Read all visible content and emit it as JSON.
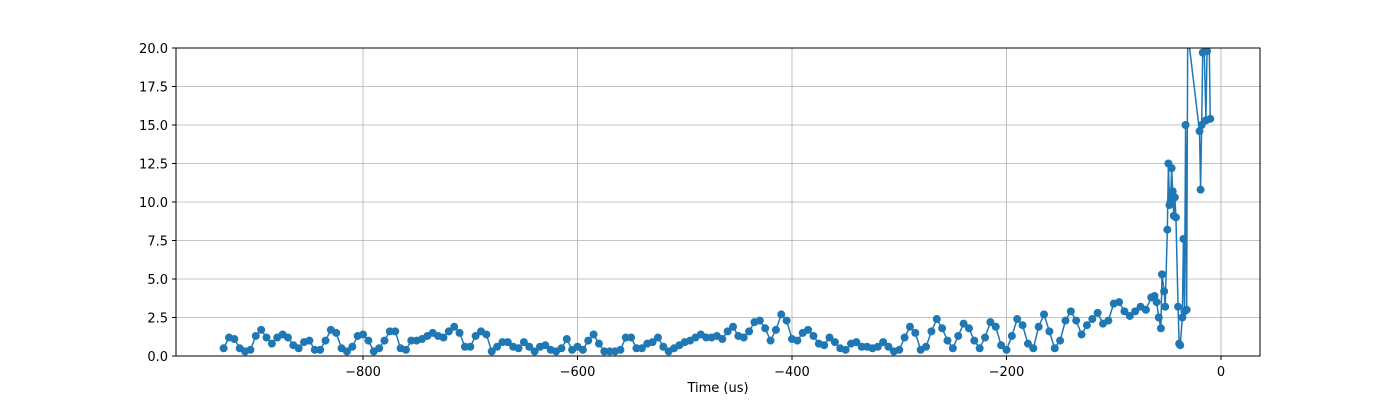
{
  "chart_data": {
    "type": "line",
    "xlabel": "Time (us)",
    "xlim": [
      -974.4,
      36.4
    ],
    "xticks": [
      {
        "value": -800,
        "label": "−800"
      },
      {
        "value": -600,
        "label": "−600"
      },
      {
        "value": -400,
        "label": "−400"
      },
      {
        "value": -200,
        "label": "−200"
      },
      0
    ],
    "ylim": [
      0,
      20
    ],
    "yticks": [
      {
        "value": 0,
        "label": "0.0"
      },
      2.5,
      {
        "value": 5,
        "label": "5.0"
      },
      7.5,
      {
        "value": 10,
        "label": "10.0"
      },
      12.5,
      {
        "value": 15,
        "label": "15.0"
      },
      17.5,
      {
        "value": 20,
        "label": "20.0"
      }
    ],
    "grid": true,
    "series": [
      {
        "color": "#1f77b4",
        "x": [
          -930,
          -925,
          -920,
          -915,
          -910,
          -905,
          -900,
          -895,
          -890,
          -885,
          -880,
          -875,
          -870,
          -865,
          -860,
          -855,
          -850,
          -845,
          -840,
          -835,
          -830,
          -825,
          -820,
          -815,
          -810,
          -805,
          -800,
          -795,
          -790,
          -785,
          -780,
          -775,
          -770,
          -765,
          -760,
          -755,
          -750,
          -745,
          -740,
          -735,
          -730,
          -725,
          -720,
          -715,
          -710,
          -705,
          -700,
          -695,
          -690,
          -685,
          -680,
          -675,
          -670,
          -665,
          -660,
          -655,
          -650,
          -645,
          -640,
          -635,
          -630,
          -625,
          -620,
          -615,
          -610,
          -605,
          -600,
          -595,
          -590,
          -585,
          -580,
          -575,
          -570,
          -565,
          -560,
          -555,
          -550,
          -545,
          -540,
          -535,
          -530,
          -525,
          -520,
          -515,
          -510,
          -505,
          -500,
          -495,
          -490,
          -485,
          -480,
          -475,
          -470,
          -465,
          -460,
          -455,
          -450,
          -445,
          -440,
          -435,
          -430,
          -425,
          -420,
          -415,
          -410,
          -405,
          -400,
          -395,
          -390,
          -385,
          -380,
          -375,
          -370,
          -365,
          -360,
          -355,
          -350,
          -345,
          -340,
          -335,
          -330,
          -325,
          -320,
          -315,
          -310,
          -305,
          -300,
          -295,
          -290,
          -285,
          -280,
          -275,
          -270,
          -265,
          -260,
          -255,
          -250,
          -245,
          -240,
          -235,
          -230,
          -225,
          -220,
          -215,
          -210,
          -205,
          -200,
          -195,
          -190,
          -185,
          -180,
          -175,
          -170,
          -165,
          -160,
          -155,
          -150,
          -145,
          -140,
          -135,
          -130,
          -125,
          -120,
          -115,
          -110,
          -105,
          -100,
          -95,
          -90,
          -85,
          -80,
          -75,
          -70,
          -65,
          -62,
          -60,
          -58,
          -56,
          -55,
          -53,
          -52,
          -50,
          -49,
          -48,
          -47,
          -46,
          -45,
          -44,
          -43,
          -42,
          -40,
          -39,
          -38,
          -36,
          -35,
          -34,
          -33,
          -32,
          -31,
          -20,
          -19,
          -18,
          -17,
          -16,
          -14,
          -13,
          -11,
          -10
        ],
        "values": [
          0.5,
          1.2,
          1.1,
          0.5,
          0.3,
          0.4,
          1.3,
          1.7,
          1.2,
          0.8,
          1.2,
          1.4,
          1.2,
          0.7,
          0.5,
          0.9,
          1.0,
          0.4,
          0.4,
          1.0,
          1.7,
          1.5,
          0.5,
          0.3,
          0.6,
          1.3,
          1.4,
          1.0,
          0.3,
          0.5,
          1.0,
          1.6,
          1.6,
          0.5,
          0.4,
          1.0,
          1.0,
          1.1,
          1.3,
          1.5,
          1.3,
          1.2,
          1.6,
          1.9,
          1.5,
          0.6,
          0.6,
          1.3,
          1.6,
          1.4,
          0.3,
          0.6,
          0.9,
          0.9,
          0.6,
          0.5,
          0.9,
          0.6,
          0.3,
          0.6,
          0.7,
          0.4,
          0.3,
          0.5,
          1.1,
          0.4,
          0.6,
          0.4,
          1.0,
          1.4,
          0.8,
          0.3,
          0.3,
          0.3,
          0.4,
          1.2,
          1.2,
          0.5,
          0.5,
          0.8,
          0.9,
          1.2,
          0.6,
          0.3,
          0.5,
          0.7,
          0.9,
          1.0,
          1.2,
          1.4,
          1.2,
          1.2,
          1.3,
          1.1,
          1.6,
          1.9,
          1.3,
          1.2,
          1.6,
          2.2,
          2.3,
          1.8,
          1.0,
          1.7,
          2.7,
          2.3,
          1.1,
          1.0,
          1.5,
          1.7,
          1.3,
          0.8,
          0.7,
          1.2,
          0.9,
          0.5,
          0.4,
          0.8,
          0.9,
          0.6,
          0.6,
          0.5,
          0.6,
          0.9,
          0.6,
          0.3,
          0.4,
          1.2,
          1.9,
          1.5,
          0.4,
          0.6,
          1.6,
          2.4,
          1.8,
          1.0,
          0.5,
          1.3,
          2.1,
          1.8,
          1.0,
          0.5,
          1.2,
          2.2,
          1.9,
          0.7,
          0.4,
          1.3,
          2.4,
          2.0,
          0.8,
          0.5,
          1.9,
          2.7,
          1.6,
          0.5,
          1.0,
          2.3,
          2.9,
          2.3,
          1.4,
          2.0,
          2.4,
          2.8,
          2.1,
          2.3,
          3.4,
          3.5,
          2.9,
          2.6,
          2.9,
          3.2,
          3.0,
          3.8,
          3.9,
          3.5,
          2.5,
          1.8,
          5.3,
          4.2,
          3.2,
          8.2,
          12.5,
          9.8,
          10.0,
          12.2,
          10.7,
          9.1,
          10.3,
          9.0,
          3.2,
          0.8,
          0.7,
          2.5,
          7.6,
          2.9,
          15.0,
          3.0,
          21,
          14.6,
          10.8,
          15.0,
          19.7,
          21,
          15.3,
          19.8,
          20.5,
          15.4
        ]
      }
    ]
  }
}
